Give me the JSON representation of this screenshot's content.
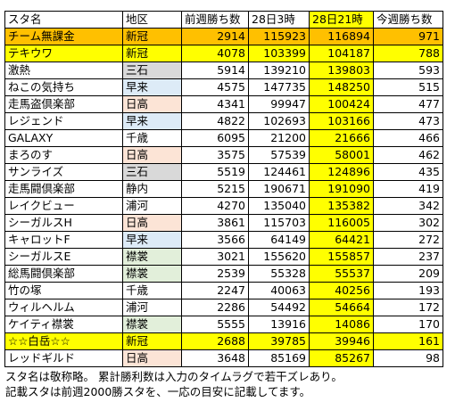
{
  "colors": {
    "orange": "#FFC000",
    "yellow": "#FFFF00",
    "light_yellow": "#FFFF66",
    "gray": "#D9D9D9",
    "blue": "#DDEBF7",
    "pink": "#FCE4D6",
    "green": "#E2EFDA",
    "white": "#FFFFFF"
  },
  "table": {
    "headers": [
      "スタ名",
      "地区",
      "前週勝ち数",
      "28日3時",
      "28日21時",
      "今週勝ち数"
    ],
    "header_bg": [
      "white",
      "white",
      "white",
      "white",
      "yellow",
      "white"
    ],
    "rows": [
      {
        "cells": [
          "チーム無課金",
          "新冠",
          "2914",
          "115923",
          "116894",
          "971"
        ],
        "bg": [
          "orange",
          "orange",
          "orange",
          "orange",
          "orange",
          "orange"
        ]
      },
      {
        "cells": [
          "テキウワ",
          "新冠",
          "4078",
          "103399",
          "104187",
          "788"
        ],
        "bg": [
          "yellow",
          "yellow",
          "yellow",
          "yellow",
          "yellow",
          "yellow"
        ]
      },
      {
        "cells": [
          "激熱",
          "三石",
          "5914",
          "139210",
          "139803",
          "593"
        ],
        "bg": [
          "white",
          "gray",
          "white",
          "white",
          "yellow",
          "white"
        ]
      },
      {
        "cells": [
          "ねこの気持ち",
          "早来",
          "4575",
          "147735",
          "148250",
          "515"
        ],
        "bg": [
          "white",
          "blue",
          "white",
          "white",
          "yellow",
          "white"
        ]
      },
      {
        "cells": [
          "走馬盗倶楽部",
          "日高",
          "4341",
          "99947",
          "100424",
          "477"
        ],
        "bg": [
          "white",
          "pink",
          "white",
          "white",
          "yellow",
          "white"
        ]
      },
      {
        "cells": [
          "レジェンド",
          "早来",
          "4822",
          "102693",
          "103166",
          "473"
        ],
        "bg": [
          "white",
          "blue",
          "white",
          "white",
          "yellow",
          "white"
        ]
      },
      {
        "cells": [
          "GALAXY",
          "千歳",
          "6095",
          "21200",
          "21666",
          "466"
        ],
        "bg": [
          "white",
          "white",
          "white",
          "white",
          "yellow",
          "white"
        ]
      },
      {
        "cells": [
          "まろのす",
          "日高",
          "3575",
          "57539",
          "58001",
          "462"
        ],
        "bg": [
          "white",
          "pink",
          "white",
          "white",
          "yellow",
          "white"
        ]
      },
      {
        "cells": [
          "サンライズ",
          "三石",
          "5519",
          "124461",
          "124896",
          "435"
        ],
        "bg": [
          "white",
          "gray",
          "white",
          "white",
          "yellow",
          "white"
        ]
      },
      {
        "cells": [
          "走馬闘倶楽部",
          "静内",
          "5215",
          "190671",
          "191090",
          "419"
        ],
        "bg": [
          "white",
          "white",
          "white",
          "white",
          "yellow",
          "white"
        ]
      },
      {
        "cells": [
          "レイクビュー",
          "浦河",
          "4270",
          "135040",
          "135382",
          "342"
        ],
        "bg": [
          "white",
          "white",
          "white",
          "white",
          "yellow",
          "white"
        ]
      },
      {
        "cells": [
          "シーガルスH",
          "日高",
          "3861",
          "115703",
          "116005",
          "302"
        ],
        "bg": [
          "white",
          "pink",
          "white",
          "white",
          "yellow",
          "white"
        ]
      },
      {
        "cells": [
          "キャロットF",
          "早来",
          "3566",
          "64149",
          "64421",
          "272"
        ],
        "bg": [
          "white",
          "blue",
          "white",
          "white",
          "yellow",
          "white"
        ]
      },
      {
        "cells": [
          "シーガルスE",
          "襟裳",
          "3021",
          "155620",
          "155857",
          "237"
        ],
        "bg": [
          "white",
          "green",
          "white",
          "white",
          "yellow",
          "white"
        ]
      },
      {
        "cells": [
          "総馬闘倶楽部",
          "襟裳",
          "2539",
          "55328",
          "55537",
          "209"
        ],
        "bg": [
          "white",
          "green",
          "white",
          "white",
          "yellow",
          "white"
        ]
      },
      {
        "cells": [
          "竹の塚",
          "千歳",
          "2247",
          "40063",
          "40256",
          "193"
        ],
        "bg": [
          "white",
          "white",
          "white",
          "white",
          "yellow",
          "white"
        ]
      },
      {
        "cells": [
          "ウィルヘルム",
          "浦河",
          "2286",
          "54492",
          "54664",
          "172"
        ],
        "bg": [
          "white",
          "white",
          "white",
          "white",
          "yellow",
          "white"
        ]
      },
      {
        "cells": [
          "ケイティ襟裳",
          "襟裳",
          "5555",
          "13916",
          "14086",
          "170"
        ],
        "bg": [
          "white",
          "green",
          "white",
          "white",
          "yellow",
          "white"
        ]
      },
      {
        "cells": [
          "☆☆白岳☆☆",
          "新冠",
          "2688",
          "39785",
          "39946",
          "161"
        ],
        "bg": [
          "yellow",
          "yellow",
          "yellow",
          "yellow",
          "yellow",
          "yellow"
        ]
      },
      {
        "cells": [
          "レッドギルド",
          "日高",
          "3648",
          "85169",
          "85267",
          "98"
        ],
        "bg": [
          "white",
          "pink",
          "white",
          "white",
          "yellow",
          "white"
        ]
      }
    ]
  },
  "notes": [
    "スタ名は敬称略。 累計勝利数は入力のタイムラグで若干ズレあり。",
    "記載スタは前週2000勝スタを、一応の目安に記載してます。"
  ]
}
